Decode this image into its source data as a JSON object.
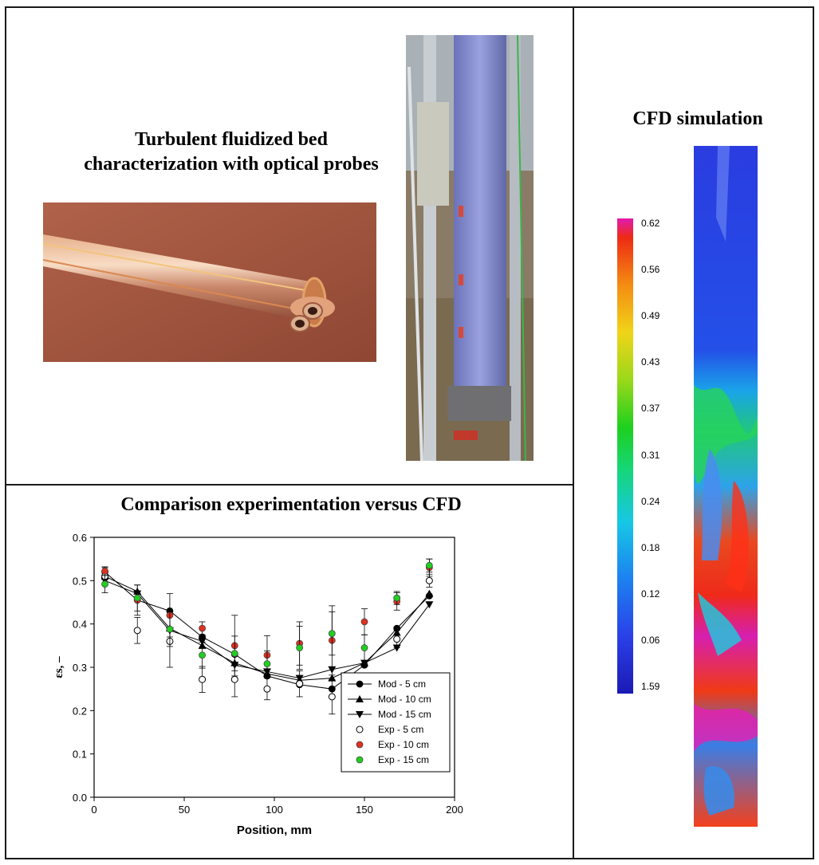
{
  "panels": {
    "probe": {
      "title_line1": "Turbulent fluidized bed",
      "title_line2": "characterization with optical probes"
    },
    "comparison": {
      "title": "Comparison experimentation versus CFD"
    },
    "cfd": {
      "title": "CFD simulation",
      "colorbar_labels": [
        "0.62",
        "0.56",
        "0.49",
        "0.43",
        "0.37",
        "0.31",
        "0.24",
        "0.18",
        "0.12",
        "0.06",
        "1.59"
      ]
    }
  },
  "chart_data": {
    "type": "scatter",
    "xlabel": "Position, mm",
    "ylabel": "εs, –",
    "xlim": [
      0,
      200
    ],
    "ylim": [
      0,
      0.6
    ],
    "xticks": [
      "0",
      "50",
      "100",
      "150",
      "200"
    ],
    "yticks": [
      "0.0",
      "0.1",
      "0.2",
      "0.3",
      "0.4",
      "0.5",
      "0.6"
    ],
    "legend_position": "bottom-right",
    "series": [
      {
        "name": "Mod - 5 cm",
        "marker": "filled-circle",
        "line": true,
        "color": "#000000",
        "x": [
          6,
          24,
          42,
          60,
          78,
          96,
          114,
          132,
          150,
          168,
          186
        ],
        "y": [
          0.52,
          0.455,
          0.43,
          0.37,
          0.33,
          0.28,
          0.26,
          0.25,
          0.305,
          0.39,
          0.465
        ]
      },
      {
        "name": "Mod - 10 cm",
        "marker": "triangle-up",
        "line": true,
        "color": "#000000",
        "x": [
          6,
          24,
          42,
          60,
          78,
          96,
          114,
          132,
          150,
          168,
          186
        ],
        "y": [
          0.51,
          0.475,
          0.39,
          0.35,
          0.31,
          0.285,
          0.27,
          0.275,
          0.31,
          0.38,
          0.47
        ]
      },
      {
        "name": "Mod - 15 cm",
        "marker": "triangle-down",
        "line": true,
        "color": "#000000",
        "x": [
          6,
          24,
          42,
          60,
          78,
          96,
          114,
          132,
          150,
          168,
          186
        ],
        "y": [
          0.5,
          0.47,
          0.385,
          0.36,
          0.305,
          0.29,
          0.275,
          0.295,
          0.31,
          0.345,
          0.445
        ]
      },
      {
        "name": "Exp - 5 cm",
        "marker": "open-circle",
        "line": false,
        "color": "#000000",
        "x": [
          6,
          24,
          42,
          60,
          78,
          96,
          114,
          132,
          150,
          168,
          186
        ],
        "y": [
          0.51,
          0.385,
          0.36,
          0.272,
          0.272,
          0.25,
          0.262,
          0.232,
          0.257,
          0.365,
          0.5
        ],
        "err": [
          0.02,
          0.03,
          0.06,
          0.03,
          0.04,
          0.025,
          0.03,
          0.04,
          0.03,
          0.02,
          0.015
        ]
      },
      {
        "name": "Exp - 10 cm",
        "marker": "filled-circle",
        "line": false,
        "color": "#e03020",
        "x": [
          6,
          24,
          42,
          60,
          78,
          96,
          114,
          132,
          150,
          168,
          186
        ],
        "y": [
          0.522,
          0.455,
          0.42,
          0.39,
          0.35,
          0.328,
          0.355,
          0.362,
          0.405,
          0.452,
          0.53
        ],
        "err": [
          0.01,
          0.035,
          0.05,
          0.015,
          0.07,
          0.045,
          0.05,
          0.08,
          0.03,
          0.02,
          0.02
        ]
      },
      {
        "name": "Exp - 15 cm",
        "marker": "filled-circle",
        "line": false,
        "color": "#1fd01f",
        "x": [
          6,
          24,
          42,
          60,
          78,
          96,
          114,
          132,
          150,
          168,
          186
        ],
        "y": [
          0.492,
          0.46,
          0.388,
          0.328,
          0.332,
          0.308,
          0.345,
          0.378,
          0.345,
          0.46,
          0.535
        ],
        "err": [
          0.02,
          0.03,
          0.04,
          0.03,
          0.04,
          0.03,
          0.05,
          0.05,
          0.03,
          0.015,
          0.015
        ]
      }
    ]
  }
}
